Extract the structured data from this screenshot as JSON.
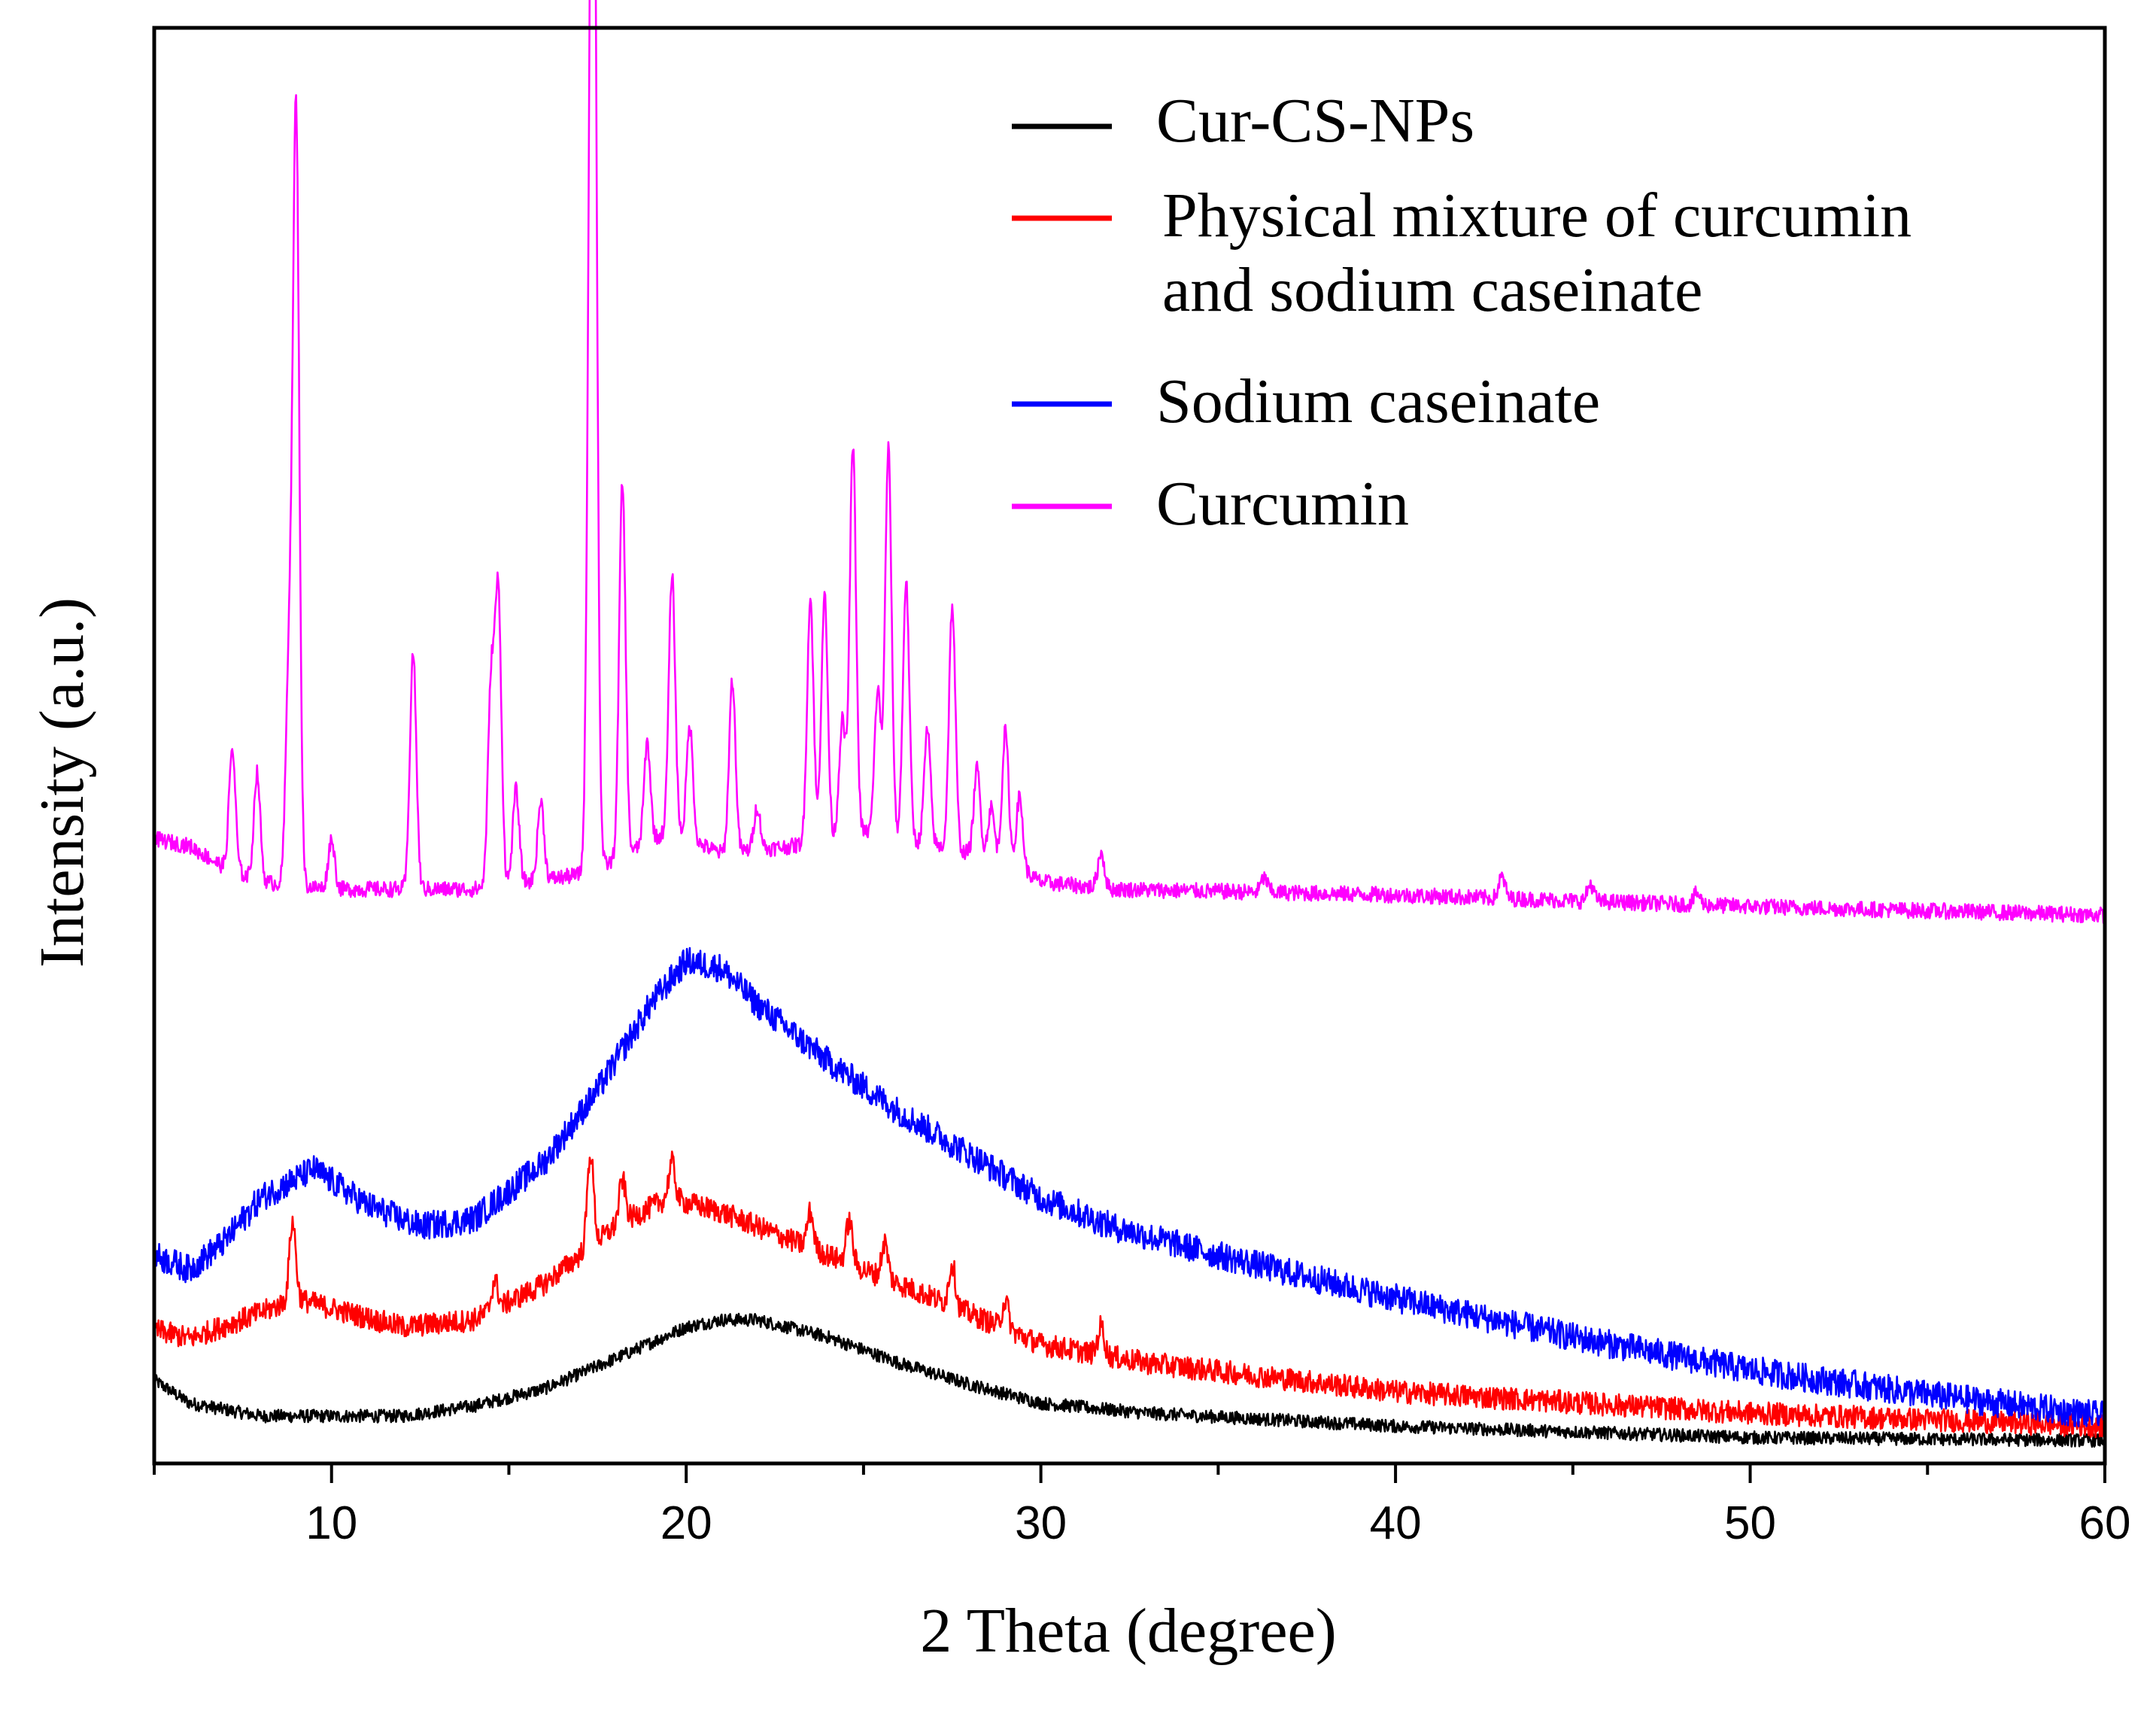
{
  "chart_data": {
    "type": "line",
    "title": "",
    "xlabel": "2 Theta (degree)",
    "ylabel": "Intensity (a.u.)",
    "xlim": [
      5,
      60
    ],
    "ylim": [
      0,
      100
    ],
    "y_ticks_shown": false,
    "xticks": [
      10,
      20,
      30,
      40,
      50,
      60
    ],
    "xtick_labels": [
      "10",
      "20",
      "30",
      "40",
      "50",
      "60"
    ],
    "legend_position": "top-right",
    "series": [
      {
        "name": "Cur-CS-NPs",
        "color": "#000000",
        "baseline": [
          [
            5,
            5.8
          ],
          [
            6,
            4.2
          ],
          [
            8,
            3.3
          ],
          [
            10,
            3.3
          ],
          [
            12,
            3.3
          ],
          [
            14,
            4.0
          ],
          [
            16,
            5.2
          ],
          [
            18,
            7.3
          ],
          [
            20,
            9.5
          ],
          [
            21,
            10.0
          ],
          [
            22,
            10.0
          ],
          [
            24,
            8.8
          ],
          [
            26,
            7.0
          ],
          [
            28,
            5.5
          ],
          [
            30,
            4.2
          ],
          [
            33,
            3.5
          ],
          [
            40,
            2.6
          ],
          [
            50,
            1.8
          ],
          [
            60,
            1.6
          ]
        ],
        "peaks": [],
        "noise": 0.45
      },
      {
        "name": "Physical mixture of curcumin and sodium caseinate",
        "color": "#ff0000",
        "baseline": [
          [
            5,
            9.3
          ],
          [
            6,
            8.7
          ],
          [
            8,
            10.5
          ],
          [
            9,
            11.5
          ],
          [
            10,
            10.8
          ],
          [
            12,
            9.5
          ],
          [
            14,
            10.0
          ],
          [
            16,
            12.5
          ],
          [
            18,
            16.5
          ],
          [
            19.5,
            18.5
          ],
          [
            21,
            17.5
          ],
          [
            24,
            14.5
          ],
          [
            27,
            11.5
          ],
          [
            30,
            8.3
          ],
          [
            33,
            7.0
          ],
          [
            40,
            5.0
          ],
          [
            50,
            3.5
          ],
          [
            60,
            2.6
          ]
        ],
        "peaks": [
          [
            8.9,
            5.5
          ],
          [
            14.6,
            2.0
          ],
          [
            17.3,
            6.5
          ],
          [
            18.2,
            3.0
          ],
          [
            19.6,
            2.5
          ],
          [
            23.5,
            2.5
          ],
          [
            24.6,
            3.0
          ],
          [
            25.6,
            2.5
          ],
          [
            27.5,
            3.0
          ],
          [
            29.0,
            2.0
          ],
          [
            31.7,
            2.0
          ]
        ],
        "noise": 0.8
      },
      {
        "name": "Sodium caseinate",
        "color": "#0000ff",
        "baseline": [
          [
            5,
            14.5
          ],
          [
            6,
            13.5
          ],
          [
            7,
            15.5
          ],
          [
            8,
            18.5
          ],
          [
            9.5,
            20.5
          ],
          [
            11,
            18.0
          ],
          [
            12.5,
            16.5
          ],
          [
            14,
            17.0
          ],
          [
            16,
            21.0
          ],
          [
            17.5,
            26.0
          ],
          [
            19,
            32.0
          ],
          [
            20,
            35.0
          ],
          [
            21,
            34.5
          ],
          [
            22,
            32.0
          ],
          [
            24,
            28.0
          ],
          [
            26,
            24.5
          ],
          [
            28,
            21.5
          ],
          [
            30,
            18.5
          ],
          [
            32,
            16.5
          ],
          [
            35,
            14.5
          ],
          [
            40,
            11.5
          ],
          [
            45,
            8.8
          ],
          [
            50,
            6.5
          ],
          [
            55,
            4.8
          ],
          [
            60,
            3.3
          ]
        ],
        "peaks": [],
        "noise": 1.0
      },
      {
        "name": "Curcumin",
        "color": "#ff00ff",
        "baseline": [
          [
            5,
            43.5
          ],
          [
            6,
            43.0
          ],
          [
            7,
            41.5
          ],
          [
            8,
            40.5
          ],
          [
            10,
            40.0
          ],
          [
            14,
            40.0
          ],
          [
            17,
            41.0
          ],
          [
            18,
            42.0
          ],
          [
            19.5,
            44.0
          ],
          [
            21,
            42.5
          ],
          [
            23,
            43.0
          ],
          [
            25,
            44.0
          ],
          [
            27,
            43.0
          ],
          [
            29,
            42.0
          ],
          [
            30,
            40.5
          ],
          [
            32,
            40.0
          ],
          [
            40,
            39.6
          ],
          [
            50,
            38.8
          ],
          [
            60,
            38.2
          ]
        ],
        "peaks": [
          [
            7.2,
            8.5
          ],
          [
            7.9,
            7.5
          ],
          [
            8.8,
            15.0
          ],
          [
            9.0,
            53.5
          ],
          [
            10.0,
            3.5
          ],
          [
            12.3,
            16.5
          ],
          [
            14.5,
            14.0
          ],
          [
            14.7,
            20.0
          ],
          [
            15.2,
            6.5
          ],
          [
            15.9,
            5.5
          ],
          [
            17.3,
            38.0
          ],
          [
            17.4,
            61.0
          ],
          [
            18.2,
            26.0
          ],
          [
            18.9,
            7.0
          ],
          [
            19.6,
            18.0
          ],
          [
            20.1,
            8.0
          ],
          [
            21.3,
            12.0
          ],
          [
            22.0,
            3.0
          ],
          [
            23.5,
            17.0
          ],
          [
            23.9,
            17.0
          ],
          [
            24.4,
            8.0
          ],
          [
            24.7,
            27.0
          ],
          [
            25.4,
            10.0
          ],
          [
            25.7,
            27.0
          ],
          [
            26.2,
            18.0
          ],
          [
            26.8,
            8.0
          ],
          [
            27.5,
            17.0
          ],
          [
            28.2,
            6.0
          ],
          [
            28.6,
            3.5
          ],
          [
            29.0,
            9.0
          ],
          [
            29.4,
            5.0
          ],
          [
            31.7,
            2.5
          ],
          [
            36.3,
            1.0
          ],
          [
            43.0,
            1.5
          ],
          [
            45.5,
            1.2
          ],
          [
            48.5,
            0.8
          ]
        ],
        "noise": 0.55
      }
    ]
  },
  "legend": {
    "items": [
      {
        "line1": "Cur-CS-NPs",
        "line2": "",
        "color": "#000000"
      },
      {
        "line1": "Physical mixture of curcumin",
        "line2": "and sodium caseinate",
        "color": "#ff0000"
      },
      {
        "line1": "Sodium caseinate",
        "line2": "",
        "color": "#0000ff"
      },
      {
        "line1": "Curcumin",
        "line2": "",
        "color": "#ff00ff"
      }
    ]
  }
}
